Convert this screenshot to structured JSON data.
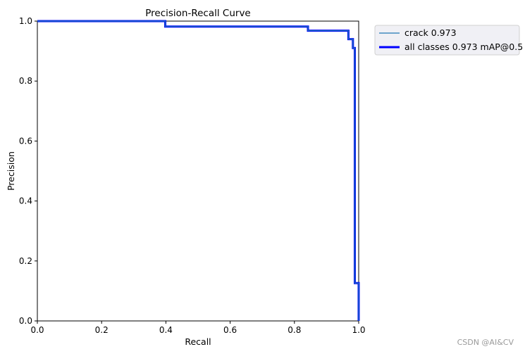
{
  "chart_data": {
    "type": "line",
    "title": "Precision-Recall Curve",
    "xlabel": "Recall",
    "ylabel": "Precision",
    "xlim": [
      0,
      1
    ],
    "ylim": [
      0,
      1
    ],
    "xticks": [
      "0.0",
      "0.2",
      "0.4",
      "0.6",
      "0.8",
      "1.0"
    ],
    "yticks": [
      "0.0",
      "0.2",
      "0.4",
      "0.6",
      "0.8",
      "1.0"
    ],
    "grid": false,
    "legend_position": "outside-top-right",
    "series": [
      {
        "name": "crack 0.973",
        "color": "#1f77b4",
        "line": "thin",
        "x": [
          0,
          0.398,
          0.398,
          0.842,
          0.842,
          0.968,
          0.968,
          0.982,
          0.982,
          0.988,
          0.988,
          0.995,
          0.995,
          1.0,
          1.0
        ],
        "y": [
          1.0,
          1.0,
          0.982,
          0.982,
          0.968,
          0.968,
          0.94,
          0.94,
          0.91,
          0.91,
          0.126,
          0.126,
          0.126,
          0.126,
          0.0
        ]
      },
      {
        "name": "all classes 0.973 mAP@0.5",
        "color": "#0000ff",
        "line": "thick",
        "x": [
          0,
          0.398,
          0.398,
          0.842,
          0.842,
          0.968,
          0.968,
          0.982,
          0.982,
          0.988,
          0.988,
          0.995,
          0.995,
          1.0,
          1.0
        ],
        "y": [
          1.0,
          1.0,
          0.982,
          0.982,
          0.968,
          0.968,
          0.94,
          0.94,
          0.91,
          0.91,
          0.126,
          0.126,
          0.126,
          0.126,
          0.0
        ]
      }
    ]
  },
  "watermark": "CSDN @AI&CV"
}
